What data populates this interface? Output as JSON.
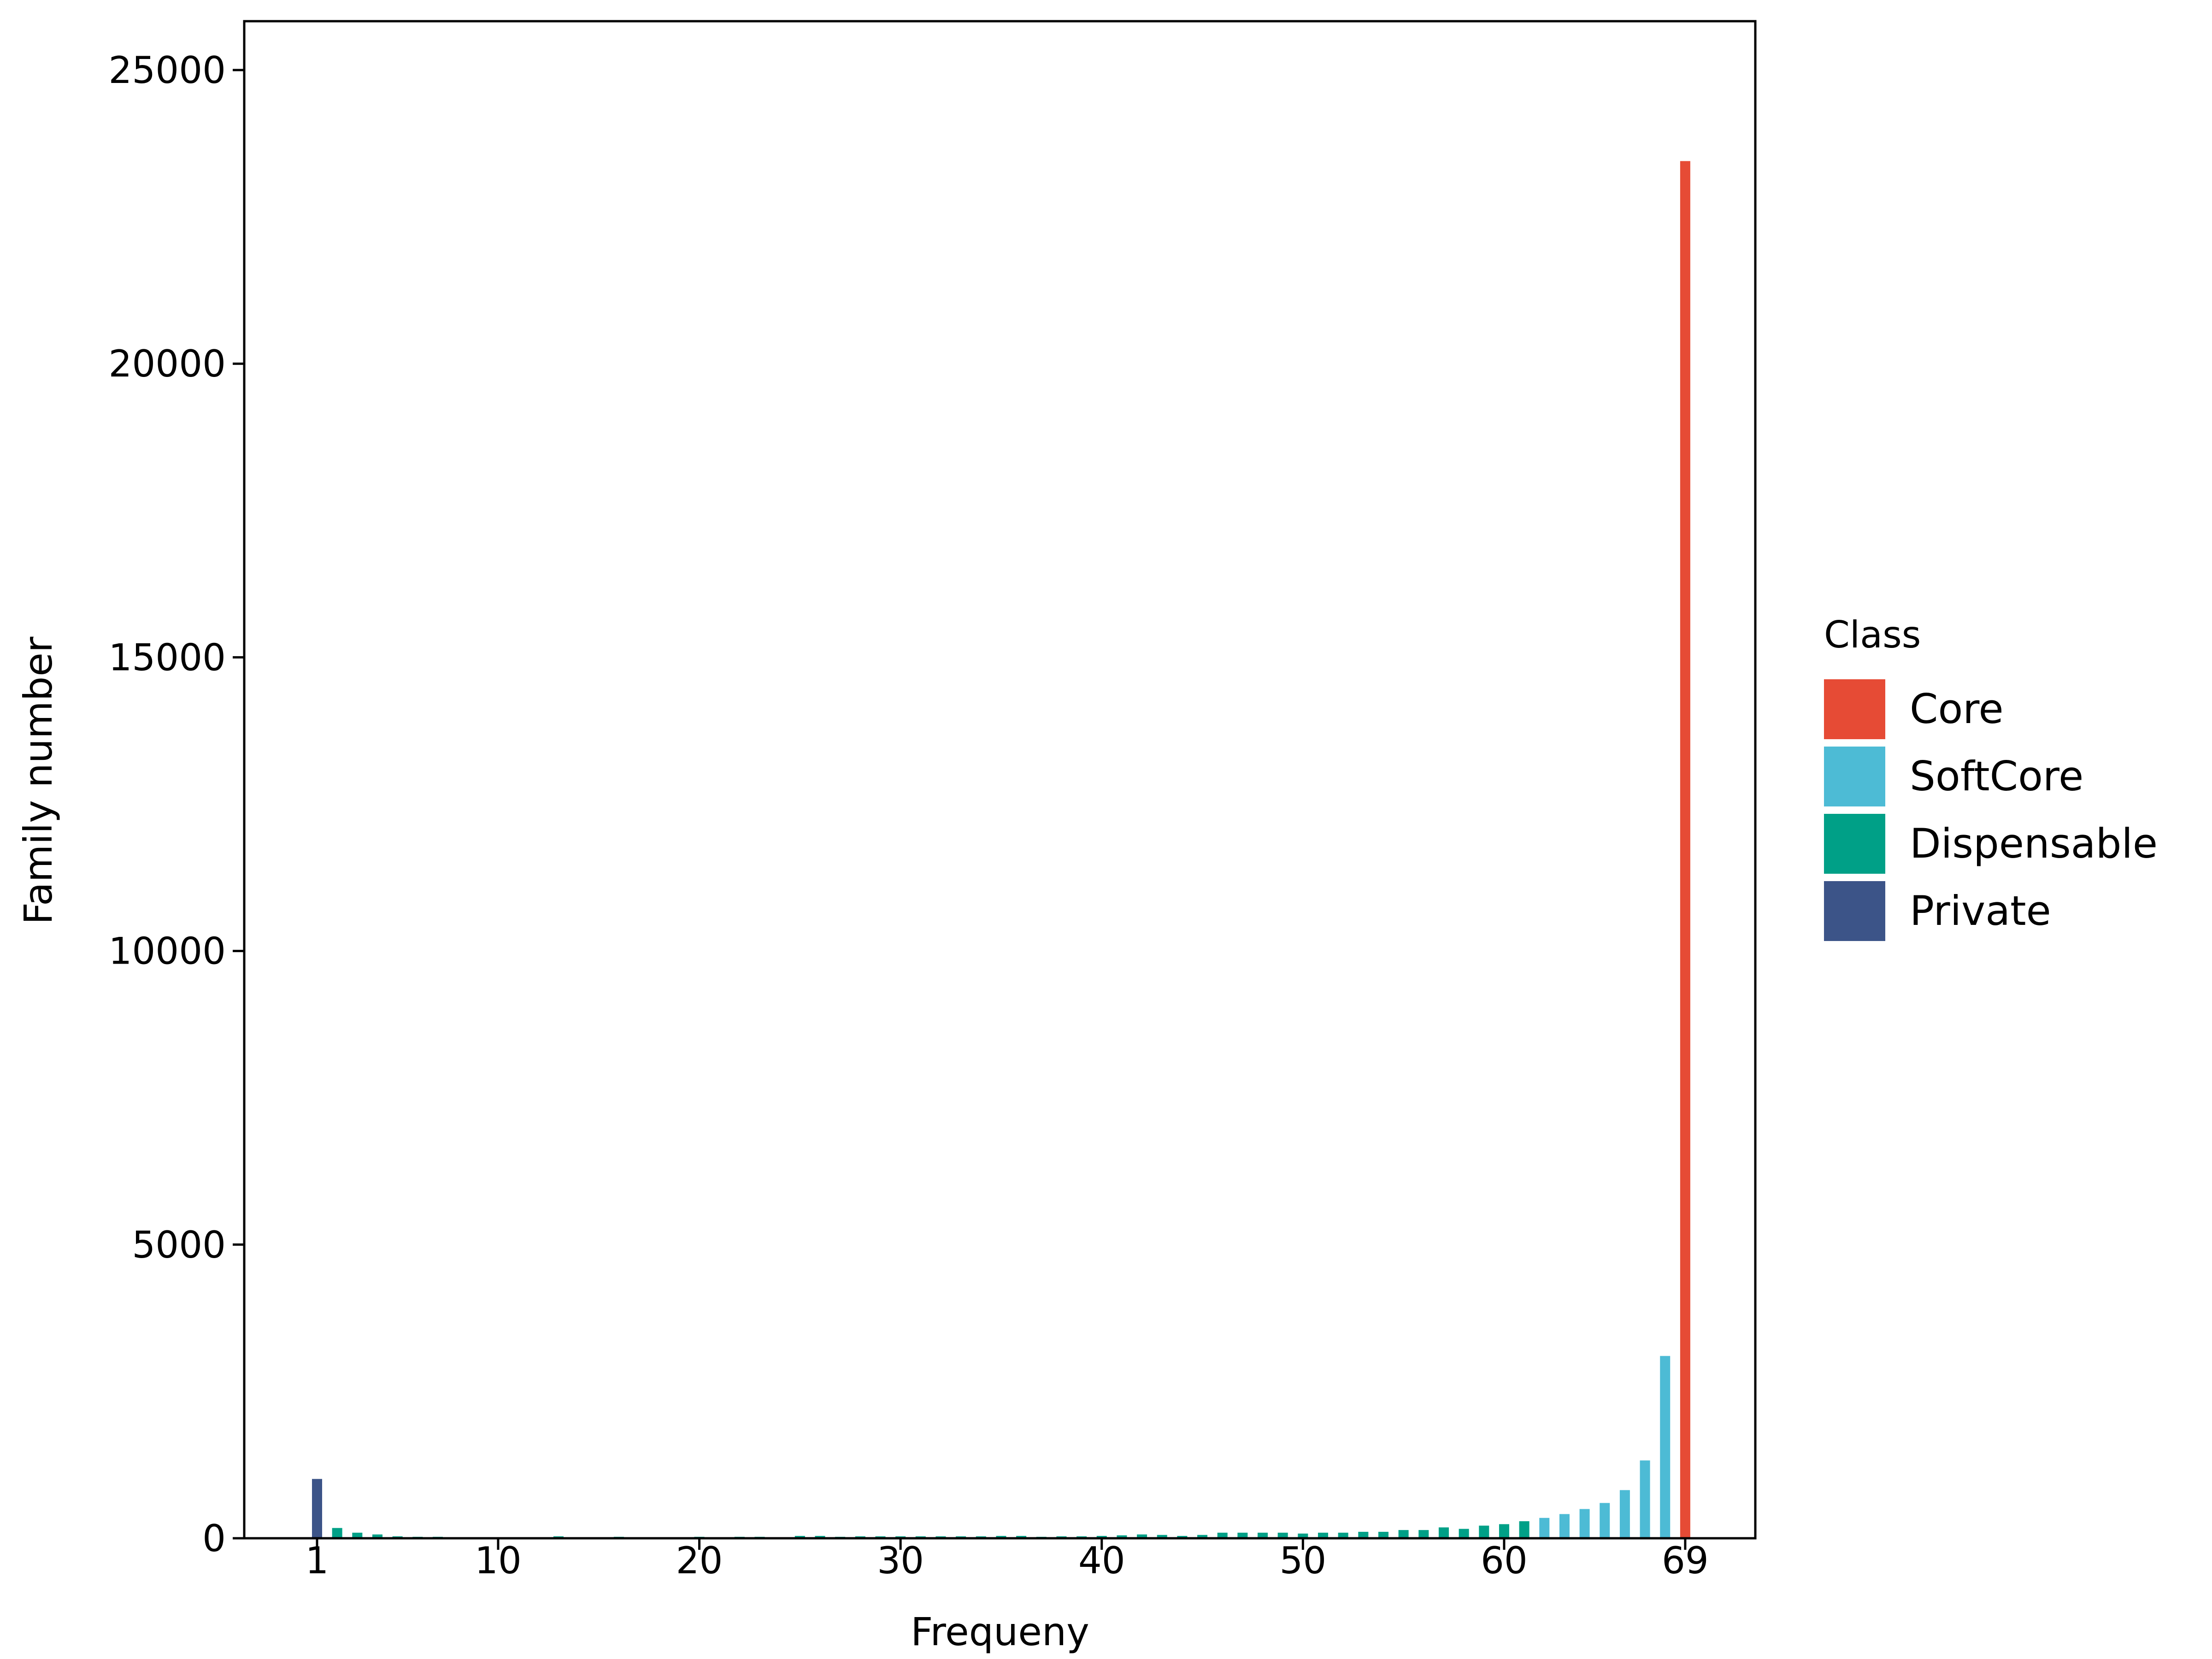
{
  "chart_data": {
    "type": "bar",
    "title": "",
    "xlabel": "Frequeny",
    "ylabel": "Family number",
    "xlim": [
      0.5,
      72
    ],
    "ylim": [
      0,
      26000
    ],
    "x_ticks": [
      1,
      10,
      20,
      30,
      40,
      50,
      60,
      69
    ],
    "y_ticks": [
      0,
      5000,
      10000,
      15000,
      20000,
      25000
    ],
    "grid": false,
    "legend": {
      "title": "Class",
      "placement": "right",
      "entries": [
        {
          "name": "Core",
          "color": "#E64B35"
        },
        {
          "name": "SoftCore",
          "color": "#4DBBD5"
        },
        {
          "name": "Dispensable",
          "color": "#00A087"
        },
        {
          "name": "Private",
          "color": "#3C5488"
        }
      ]
    },
    "x": [
      1,
      2,
      3,
      4,
      5,
      6,
      7,
      8,
      9,
      10,
      11,
      12,
      13,
      14,
      15,
      16,
      17,
      18,
      19,
      20,
      21,
      22,
      23,
      24,
      25,
      26,
      27,
      28,
      29,
      30,
      31,
      32,
      33,
      34,
      35,
      36,
      37,
      38,
      39,
      40,
      41,
      42,
      43,
      44,
      45,
      46,
      47,
      48,
      49,
      50,
      51,
      52,
      53,
      54,
      55,
      56,
      57,
      58,
      59,
      60,
      61,
      62,
      63,
      64,
      65,
      66,
      67,
      68,
      69
    ],
    "values": [
      1010,
      175,
      95,
      65,
      33,
      25,
      25,
      16,
      16,
      16,
      16,
      0,
      33,
      16,
      16,
      25,
      0,
      0,
      16,
      25,
      0,
      25,
      25,
      0,
      40,
      40,
      25,
      33,
      33,
      33,
      33,
      33,
      33,
      33,
      40,
      40,
      25,
      33,
      33,
      40,
      50,
      65,
      57,
      40,
      57,
      95,
      95,
      95,
      95,
      80,
      95,
      95,
      110,
      110,
      140,
      140,
      185,
      160,
      215,
      240,
      290,
      347,
      412,
      498,
      601,
      820,
      1325,
      3104,
      23450
    ],
    "classes": [
      "Private",
      "Dispensable",
      "Dispensable",
      "Dispensable",
      "Dispensable",
      "Dispensable",
      "Dispensable",
      "Dispensable",
      "Dispensable",
      "Dispensable",
      "Dispensable",
      "Dispensable",
      "Dispensable",
      "Dispensable",
      "Dispensable",
      "Dispensable",
      "Dispensable",
      "Dispensable",
      "Dispensable",
      "Dispensable",
      "Dispensable",
      "Dispensable",
      "Dispensable",
      "Dispensable",
      "Dispensable",
      "Dispensable",
      "Dispensable",
      "Dispensable",
      "Dispensable",
      "Dispensable",
      "Dispensable",
      "Dispensable",
      "Dispensable",
      "Dispensable",
      "Dispensable",
      "Dispensable",
      "Dispensable",
      "Dispensable",
      "Dispensable",
      "Dispensable",
      "Dispensable",
      "Dispensable",
      "Dispensable",
      "Dispensable",
      "Dispensable",
      "Dispensable",
      "Dispensable",
      "Dispensable",
      "Dispensable",
      "Dispensable",
      "Dispensable",
      "Dispensable",
      "Dispensable",
      "Dispensable",
      "Dispensable",
      "Dispensable",
      "Dispensable",
      "Dispensable",
      "Dispensable",
      "Dispensable",
      "Dispensable",
      "SoftCore",
      "SoftCore",
      "SoftCore",
      "SoftCore",
      "SoftCore",
      "SoftCore",
      "SoftCore",
      "Core"
    ]
  }
}
